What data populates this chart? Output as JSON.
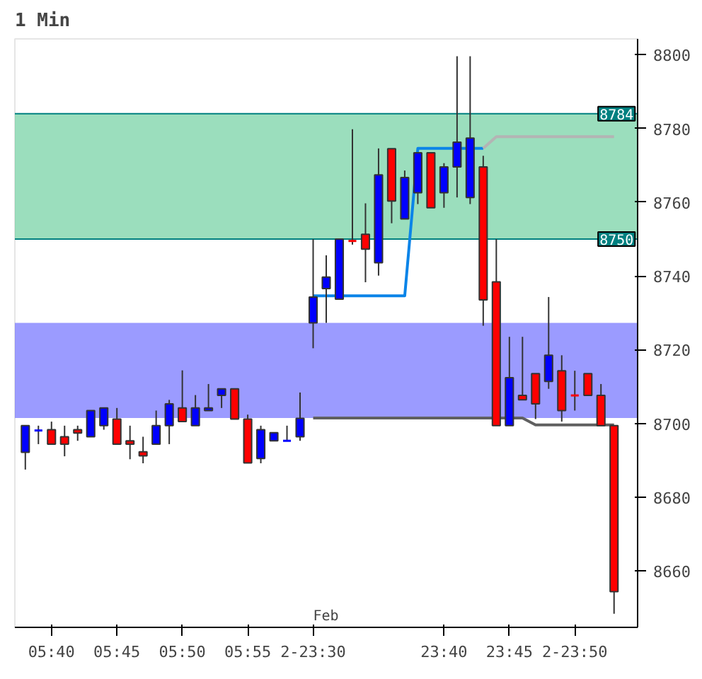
{
  "chart_data": {
    "type": "candlestick",
    "title": "1 Min",
    "categories": [
      null,
      null,
      "05:40",
      null,
      null,
      null,
      null,
      "05:45",
      null,
      null,
      null,
      null,
      "05:50",
      null,
      null,
      null,
      null,
      "05:55",
      null,
      null,
      null,
      null,
      "2-23:30",
      null,
      null,
      null,
      null,
      null,
      null,
      null,
      null,
      null,
      "23:40",
      null,
      null,
      null,
      null,
      "23:45",
      null,
      null,
      null,
      null,
      "2-23:50",
      null,
      null,
      null
    ],
    "ohlc": [
      [
        8692.2,
        8699.4,
        8687.5,
        8699.4
      ],
      [
        8698.1,
        8699.4,
        8694.4,
        8698.1
      ],
      [
        8698.3,
        8700.5,
        8694.4,
        8694.4
      ],
      [
        8696.4,
        8699.4,
        8691.1,
        8694.4
      ],
      [
        8698.3,
        8699.4,
        8695.3,
        8697.4
      ],
      [
        8696.4,
        8703.5,
        8696.4,
        8703.5
      ],
      [
        8699.4,
        8704.2,
        8698.3,
        8704.2
      ],
      [
        8701.2,
        8704.2,
        8694.4,
        8694.4
      ],
      [
        8695.3,
        8699.4,
        8690.3,
        8694.4
      ],
      [
        8692.3,
        8696.4,
        8689.2,
        8691.2
      ],
      [
        8694.4,
        8703.5,
        8694.4,
        8699.4
      ],
      [
        8699.4,
        8706.4,
        8694.4,
        8705.3
      ],
      [
        8704.2,
        8714.4,
        8700.5,
        8700.5
      ],
      [
        8699.4,
        8707.7,
        8699.4,
        8704.2
      ],
      [
        8703.5,
        8710.7,
        8703.5,
        8704.2
      ],
      [
        8707.6,
        8709.4,
        8704.2,
        8709.4
      ],
      [
        8709.4,
        8709.4,
        8701.2,
        8701.2
      ],
      [
        8701.2,
        8702.4,
        8689.3,
        8689.3
      ],
      [
        8690.5,
        8699.4,
        8689.2,
        8698.3
      ],
      [
        8695.3,
        8697.5,
        8695.3,
        8697.5
      ],
      [
        8695.3,
        8699.4,
        8695.3,
        8695.3
      ],
      [
        8696.4,
        8708.4,
        8695.3,
        8701.4
      ],
      [
        8727.3,
        8750,
        8720.4,
        8734.3
      ],
      [
        8736.6,
        8745.6,
        8727.3,
        8739.7
      ],
      [
        8733.7,
        8750,
        8733.7,
        8750
      ],
      [
        8749.5,
        8779.8,
        8748.5,
        8749.5
      ],
      [
        8751.3,
        8759.7,
        8738.3,
        8747.3
      ],
      [
        8743.6,
        8774.6,
        8740.1,
        8767.4
      ],
      [
        8774.5,
        8774.5,
        8754.3,
        8760.3
      ],
      [
        8755.5,
        8768.6,
        8755.5,
        8766.7
      ],
      [
        8762.6,
        8773.4,
        8759.5,
        8773.4
      ],
      [
        8773.4,
        8773.4,
        8758.5,
        8758.5
      ],
      [
        8762.6,
        8770.6,
        8758.5,
        8769.6
      ],
      [
        8769.6,
        8799.6,
        8761.3,
        8776.3
      ],
      [
        8761.3,
        8799.6,
        8759.5,
        8777.4
      ],
      [
        8769.6,
        8772.6,
        8726.5,
        8733.5
      ],
      [
        8738.4,
        8750,
        8699.4,
        8699.4
      ],
      [
        8699.4,
        8723.5,
        8699.4,
        8712.4
      ],
      [
        8707.6,
        8723.5,
        8706.4,
        8706.4
      ],
      [
        8713.5,
        8713.5,
        8701.2,
        8705.3
      ],
      [
        8711.4,
        8734.3,
        8709.4,
        8718.5
      ],
      [
        8714.3,
        8718.5,
        8700.5,
        8703.5
      ],
      [
        8707.6,
        8714.3,
        8703.5,
        8707.6
      ],
      [
        8713.5,
        8713.5,
        8707.6,
        8707.6
      ],
      [
        8707.6,
        8710.7,
        8699.4,
        8699.4
      ],
      [
        8699.4,
        8699.4,
        8648.4,
        8654.4
      ]
    ],
    "colors": [
      "#0000ff",
      "#0000ff",
      "#ff0000",
      "#ff0000",
      "#ff0000",
      "#0000ff",
      "#0000ff",
      "#ff0000",
      "#ff0000",
      "#ff0000",
      "#0000ff",
      "#0000ff",
      "#ff0000",
      "#0000ff",
      "#0000ff",
      "#0000ff",
      "#ff0000",
      "#ff0000",
      "#0000ff",
      "#0000ff",
      "#0000ff",
      "#0000ff",
      "#0000ff",
      "#0000ff",
      "#0000ff",
      "#ff0000",
      "#ff0000",
      "#0000ff",
      "#ff0000",
      "#0000ff",
      "#0000ff",
      "#ff0000",
      "#0000ff",
      "#0000ff",
      "#0000ff",
      "#ff0000",
      "#ff0000",
      "#0000ff",
      "#ff0000",
      "#ff0000",
      "#0000ff",
      "#ff0000",
      "#ff0000",
      "#ff0000",
      "#ff0000",
      "#ff0000"
    ],
    "series": [
      {
        "type": "line",
        "color": "#0a84e8",
        "values": [
          null,
          null,
          null,
          null,
          null,
          null,
          null,
          null,
          null,
          null,
          null,
          null,
          null,
          null,
          null,
          null,
          null,
          null,
          null,
          null,
          null,
          null,
          8734.6,
          8734.6,
          8734.6,
          8734.6,
          8734.6,
          8734.6,
          8734.6,
          8734.6,
          8774.6,
          8774.6,
          8774.6,
          8774.6,
          8774.6,
          8774.6,
          null,
          null,
          null,
          null,
          null,
          null,
          null,
          null,
          null,
          null
        ]
      },
      {
        "type": "line",
        "color": "#b4b4b4",
        "values": [
          null,
          null,
          null,
          null,
          null,
          null,
          null,
          null,
          null,
          null,
          null,
          null,
          null,
          null,
          null,
          null,
          null,
          null,
          null,
          null,
          null,
          null,
          null,
          null,
          null,
          null,
          null,
          null,
          null,
          null,
          null,
          null,
          null,
          null,
          null,
          8774.6,
          8777.8,
          8777.8,
          8777.8,
          8777.8,
          8777.8,
          8777.8,
          8777.8,
          8777.8,
          8777.8,
          8777.8
        ]
      },
      {
        "type": "line",
        "color": "#606060",
        "values": [
          null,
          null,
          null,
          null,
          null,
          null,
          null,
          null,
          null,
          null,
          null,
          null,
          null,
          null,
          null,
          null,
          null,
          null,
          null,
          null,
          null,
          null,
          8701.5,
          8701.5,
          8701.5,
          8701.5,
          8701.5,
          8701.5,
          8701.5,
          8701.5,
          8701.5,
          8701.5,
          8701.5,
          8701.5,
          8701.5,
          8701.5,
          8701.5,
          8701.5,
          8701.5,
          8699.6,
          8699.6,
          8699.6,
          8699.6,
          8699.6,
          8699.6,
          8699.6
        ]
      }
    ],
    "ylim": [
      8644.7,
      8804.3
    ],
    "yticks": [
      8660,
      8680,
      8700,
      8720,
      8740,
      8760,
      8780,
      8800
    ],
    "ref_lines": [
      {
        "axis": "y",
        "value": 8784,
        "label": "8784",
        "color": "#008080"
      },
      {
        "axis": "y",
        "value": 8750,
        "label": "8750",
        "color": "#008080"
      }
    ],
    "bands": [
      {
        "axis": "y",
        "from": 8750,
        "to": 8784,
        "color": "#66cc99"
      },
      {
        "axis": "y",
        "from": 8701.5,
        "to": 8727.3,
        "color": "#6666ff"
      }
    ],
    "annotations": [
      "Feb"
    ]
  }
}
